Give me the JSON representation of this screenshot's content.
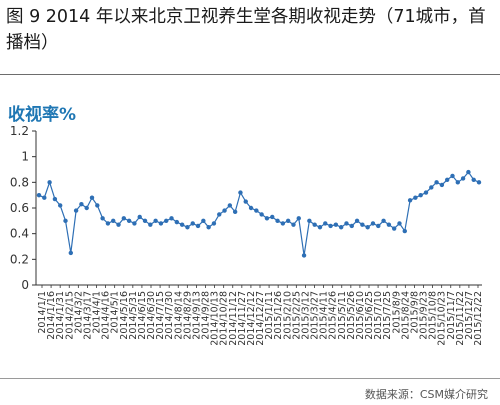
{
  "figure_title": "图 9 2014 年以来北京卫视养生堂各期收视走势（71城市，首播档）",
  "source_note": "数据来源：CSM媒介研究",
  "chart_data": {
    "type": "line",
    "ylabel": "收视率%",
    "xlabel": "",
    "ylim": [
      0,
      1.2
    ],
    "yticks": [
      0,
      0.2,
      0.4,
      0.6,
      0.8,
      1,
      1.2
    ],
    "grid": "none",
    "colors": {
      "line": "#2e6fb5",
      "marker": "#2e6fb5",
      "axis": "#333333"
    },
    "x_ticks": [
      "2014/1/1",
      "2014/1/16",
      "2014/1/31",
      "2014/2/15",
      "2014/3/2",
      "2014/3/17",
      "2014/4/1",
      "2014/4/16",
      "2014/5/1",
      "2014/5/16",
      "2014/5/31",
      "2014/6/15",
      "2014/6/30",
      "2014/7/15",
      "2014/7/30",
      "2014/8/14",
      "2014/8/29",
      "2014/9/13",
      "2014/9/28",
      "2014/10/13",
      "2014/10/28",
      "2014/11/12",
      "2014/11/27",
      "2014/12/12",
      "2014/12/27",
      "2015/1/11",
      "2015/1/26",
      "2015/2/10",
      "2015/2/25",
      "2015/3/12",
      "2015/3/27",
      "2015/4/11",
      "2015/4/26",
      "2015/5/11",
      "2015/5/26",
      "2015/6/10",
      "2015/6/25",
      "2015/7/10",
      "2015/7/25",
      "2015/8/9",
      "2015/8/24",
      "2015/9/8",
      "2015/9/23",
      "2015/10/8",
      "2015/10/23",
      "2015/11/7",
      "2015/11/22",
      "2015/12/7",
      "2015/12/22"
    ],
    "series": [
      {
        "values": [
          0.7,
          0.68,
          0.8,
          0.67,
          0.62,
          0.5,
          0.25,
          0.58,
          0.63,
          0.6,
          0.68,
          0.62,
          0.52,
          0.48,
          0.5,
          0.47,
          0.52,
          0.5,
          0.48,
          0.53,
          0.5,
          0.47,
          0.5,
          0.48,
          0.5,
          0.52,
          0.49,
          0.47,
          0.45,
          0.48,
          0.46,
          0.5,
          0.45,
          0.48,
          0.55,
          0.58,
          0.62,
          0.57,
          0.72,
          0.65,
          0.6,
          0.58,
          0.55,
          0.52,
          0.53,
          0.5,
          0.48,
          0.5,
          0.47,
          0.52,
          0.23,
          0.5,
          0.47,
          0.45,
          0.48,
          0.46,
          0.47,
          0.45,
          0.48,
          0.46,
          0.5,
          0.47,
          0.45,
          0.48,
          0.46,
          0.5,
          0.47,
          0.44,
          0.48,
          0.42,
          0.66,
          0.68,
          0.7,
          0.72,
          0.76,
          0.8,
          0.78,
          0.82,
          0.85,
          0.8,
          0.83,
          0.88,
          0.82,
          0.8
        ]
      }
    ]
  }
}
